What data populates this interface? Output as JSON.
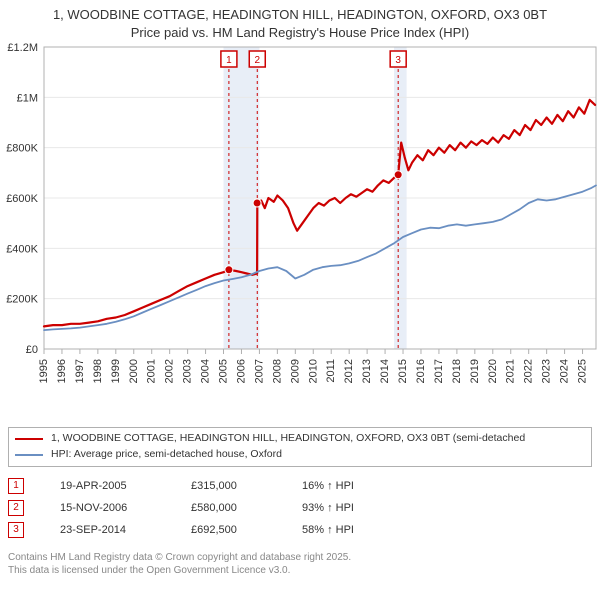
{
  "title_line1": "1, WOODBINE COTTAGE, HEADINGTON HILL, HEADINGTON, OXFORD, OX3 0BT",
  "title_line2": "Price paid vs. HM Land Registry's House Price Index (HPI)",
  "chart": {
    "type": "line",
    "background_color": "#ffffff",
    "plot_border_color": "#b0b0b0",
    "grid_color": "#e8e8e8",
    "highlight_band_color": "#e8eef7",
    "y": {
      "min": 0,
      "max": 1200000,
      "ticks": [
        0,
        200000,
        400000,
        600000,
        800000,
        1000000,
        1200000
      ],
      "labels": [
        "£0",
        "£200K",
        "£400K",
        "£600K",
        "£800K",
        "£1M",
        "£1.2M"
      ]
    },
    "x": {
      "min": 1995,
      "max": 2025.75,
      "ticks": [
        1995,
        1996,
        1997,
        1998,
        1999,
        2000,
        2001,
        2002,
        2003,
        2004,
        2005,
        2006,
        2007,
        2008,
        2009,
        2010,
        2011,
        2012,
        2013,
        2014,
        2015,
        2016,
        2017,
        2018,
        2019,
        2020,
        2021,
        2022,
        2023,
        2024,
        2025
      ],
      "labels": [
        "1995",
        "1996",
        "1997",
        "1998",
        "1999",
        "2000",
        "2001",
        "2002",
        "2003",
        "2004",
        "2005",
        "2006",
        "2007",
        "2008",
        "2009",
        "2010",
        "2011",
        "2012",
        "2013",
        "2014",
        "2015",
        "2016",
        "2017",
        "2018",
        "2019",
        "2020",
        "2021",
        "2022",
        "2023",
        "2024",
        "2025"
      ]
    },
    "highlight_bands": [
      {
        "from": 2005.0,
        "to": 2007.0
      },
      {
        "from": 2014.5,
        "to": 2015.2
      }
    ],
    "markers": [
      {
        "n": "1",
        "x": 2005.3,
        "color": "#cc0000"
      },
      {
        "n": "2",
        "x": 2006.88,
        "color": "#cc0000"
      },
      {
        "n": "3",
        "x": 2014.73,
        "color": "#cc0000"
      }
    ],
    "series": [
      {
        "name": "price_paid",
        "color": "#cc0000",
        "width": 2.2,
        "points": [
          [
            1995.0,
            90000
          ],
          [
            1995.5,
            95000
          ],
          [
            1996.0,
            95000
          ],
          [
            1996.5,
            100000
          ],
          [
            1997.0,
            100000
          ],
          [
            1997.5,
            105000
          ],
          [
            1998.0,
            110000
          ],
          [
            1998.5,
            120000
          ],
          [
            1999.0,
            125000
          ],
          [
            1999.5,
            135000
          ],
          [
            2000.0,
            150000
          ],
          [
            2000.5,
            165000
          ],
          [
            2001.0,
            180000
          ],
          [
            2001.5,
            195000
          ],
          [
            2002.0,
            210000
          ],
          [
            2002.5,
            230000
          ],
          [
            2003.0,
            250000
          ],
          [
            2003.5,
            265000
          ],
          [
            2004.0,
            280000
          ],
          [
            2004.5,
            295000
          ],
          [
            2005.0,
            305000
          ],
          [
            2005.3,
            315000
          ],
          [
            2005.7,
            310000
          ],
          [
            2006.0,
            305000
          ],
          [
            2006.3,
            300000
          ],
          [
            2006.6,
            295000
          ],
          [
            2006.87,
            300000
          ],
          [
            2006.88,
            580000
          ],
          [
            2007.1,
            590000
          ],
          [
            2007.3,
            560000
          ],
          [
            2007.5,
            600000
          ],
          [
            2007.8,
            585000
          ],
          [
            2008.0,
            610000
          ],
          [
            2008.3,
            590000
          ],
          [
            2008.6,
            560000
          ],
          [
            2008.9,
            500000
          ],
          [
            2009.1,
            470000
          ],
          [
            2009.4,
            500000
          ],
          [
            2009.7,
            530000
          ],
          [
            2010.0,
            560000
          ],
          [
            2010.3,
            580000
          ],
          [
            2010.6,
            570000
          ],
          [
            2010.9,
            590000
          ],
          [
            2011.2,
            600000
          ],
          [
            2011.5,
            580000
          ],
          [
            2011.8,
            600000
          ],
          [
            2012.1,
            615000
          ],
          [
            2012.4,
            605000
          ],
          [
            2012.7,
            620000
          ],
          [
            2013.0,
            635000
          ],
          [
            2013.3,
            625000
          ],
          [
            2013.6,
            650000
          ],
          [
            2013.9,
            670000
          ],
          [
            2014.2,
            660000
          ],
          [
            2014.5,
            680000
          ],
          [
            2014.72,
            692500
          ],
          [
            2014.73,
            692500
          ],
          [
            2014.9,
            820000
          ],
          [
            2015.1,
            760000
          ],
          [
            2015.3,
            710000
          ],
          [
            2015.5,
            740000
          ],
          [
            2015.8,
            770000
          ],
          [
            2016.1,
            750000
          ],
          [
            2016.4,
            790000
          ],
          [
            2016.7,
            770000
          ],
          [
            2017.0,
            800000
          ],
          [
            2017.3,
            780000
          ],
          [
            2017.6,
            810000
          ],
          [
            2017.9,
            790000
          ],
          [
            2018.2,
            820000
          ],
          [
            2018.5,
            800000
          ],
          [
            2018.8,
            825000
          ],
          [
            2019.1,
            810000
          ],
          [
            2019.4,
            830000
          ],
          [
            2019.7,
            815000
          ],
          [
            2020.0,
            840000
          ],
          [
            2020.3,
            820000
          ],
          [
            2020.6,
            850000
          ],
          [
            2020.9,
            835000
          ],
          [
            2021.2,
            870000
          ],
          [
            2021.5,
            850000
          ],
          [
            2021.8,
            890000
          ],
          [
            2022.1,
            870000
          ],
          [
            2022.4,
            910000
          ],
          [
            2022.7,
            890000
          ],
          [
            2023.0,
            920000
          ],
          [
            2023.3,
            895000
          ],
          [
            2023.6,
            930000
          ],
          [
            2023.9,
            905000
          ],
          [
            2024.2,
            945000
          ],
          [
            2024.5,
            920000
          ],
          [
            2024.8,
            960000
          ],
          [
            2025.1,
            935000
          ],
          [
            2025.4,
            990000
          ],
          [
            2025.7,
            970000
          ]
        ],
        "sale_dots": [
          {
            "x": 2005.3,
            "y": 315000
          },
          {
            "x": 2006.87,
            "y": 580000
          },
          {
            "x": 2014.73,
            "y": 692500
          }
        ]
      },
      {
        "name": "hpi",
        "color": "#6a8fc2",
        "width": 1.8,
        "points": [
          [
            1995.0,
            75000
          ],
          [
            1995.5,
            78000
          ],
          [
            1996.0,
            80000
          ],
          [
            1996.5,
            82000
          ],
          [
            1997.0,
            85000
          ],
          [
            1997.5,
            90000
          ],
          [
            1998.0,
            95000
          ],
          [
            1998.5,
            100000
          ],
          [
            1999.0,
            108000
          ],
          [
            1999.5,
            118000
          ],
          [
            2000.0,
            130000
          ],
          [
            2000.5,
            145000
          ],
          [
            2001.0,
            160000
          ],
          [
            2001.5,
            175000
          ],
          [
            2002.0,
            190000
          ],
          [
            2002.5,
            205000
          ],
          [
            2003.0,
            220000
          ],
          [
            2003.5,
            235000
          ],
          [
            2004.0,
            250000
          ],
          [
            2004.5,
            262000
          ],
          [
            2005.0,
            272000
          ],
          [
            2005.5,
            278000
          ],
          [
            2006.0,
            285000
          ],
          [
            2006.5,
            295000
          ],
          [
            2007.0,
            310000
          ],
          [
            2007.5,
            320000
          ],
          [
            2008.0,
            325000
          ],
          [
            2008.5,
            310000
          ],
          [
            2009.0,
            280000
          ],
          [
            2009.5,
            295000
          ],
          [
            2010.0,
            315000
          ],
          [
            2010.5,
            325000
          ],
          [
            2011.0,
            330000
          ],
          [
            2011.5,
            333000
          ],
          [
            2012.0,
            340000
          ],
          [
            2012.5,
            350000
          ],
          [
            2013.0,
            365000
          ],
          [
            2013.5,
            380000
          ],
          [
            2014.0,
            400000
          ],
          [
            2014.5,
            420000
          ],
          [
            2015.0,
            445000
          ],
          [
            2015.5,
            460000
          ],
          [
            2016.0,
            475000
          ],
          [
            2016.5,
            482000
          ],
          [
            2017.0,
            480000
          ],
          [
            2017.5,
            490000
          ],
          [
            2018.0,
            495000
          ],
          [
            2018.5,
            490000
          ],
          [
            2019.0,
            495000
          ],
          [
            2019.5,
            500000
          ],
          [
            2020.0,
            505000
          ],
          [
            2020.5,
            515000
          ],
          [
            2021.0,
            535000
          ],
          [
            2021.5,
            555000
          ],
          [
            2022.0,
            580000
          ],
          [
            2022.5,
            595000
          ],
          [
            2023.0,
            590000
          ],
          [
            2023.5,
            595000
          ],
          [
            2024.0,
            605000
          ],
          [
            2024.5,
            615000
          ],
          [
            2025.0,
            625000
          ],
          [
            2025.5,
            640000
          ],
          [
            2025.75,
            650000
          ]
        ]
      }
    ]
  },
  "legend": {
    "series1": {
      "color": "#cc0000",
      "label": "1, WOODBINE COTTAGE, HEADINGTON HILL, HEADINGTON, OXFORD, OX3 0BT (semi-detached"
    },
    "series2": {
      "color": "#6a8fc2",
      "label": "HPI: Average price, semi-detached house, Oxford"
    }
  },
  "sales": [
    {
      "n": "1",
      "date": "19-APR-2005",
      "price": "£315,000",
      "pct": "16% ↑ HPI",
      "color": "#cc0000"
    },
    {
      "n": "2",
      "date": "15-NOV-2006",
      "price": "£580,000",
      "pct": "93% ↑ HPI",
      "color": "#cc0000"
    },
    {
      "n": "3",
      "date": "23-SEP-2014",
      "price": "£692,500",
      "pct": "58% ↑ HPI",
      "color": "#cc0000"
    }
  ],
  "footnote_line1": "Contains HM Land Registry data © Crown copyright and database right 2025.",
  "footnote_line2": "This data is licensed under the Open Government Licence v3.0."
}
